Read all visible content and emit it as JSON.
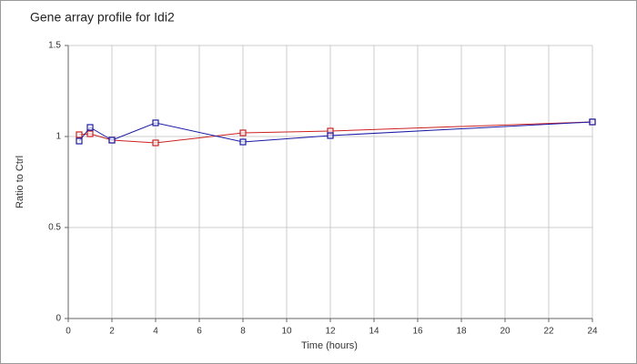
{
  "chart_data": {
    "type": "line",
    "title": "Gene array profile for Idi2",
    "xlabel": "Time (hours)",
    "ylabel": "Ratio to Ctrl",
    "x": [
      0.5,
      1,
      2,
      4,
      8,
      12,
      24
    ],
    "series": [
      {
        "color": "#cc2222",
        "values": [
          1.01,
          1.015,
          0.98,
          0.965,
          1.02,
          1.03,
          1.08
        ]
      },
      {
        "color": "#1a1aa8",
        "values": [
          0.975,
          1.05,
          0.98,
          1.075,
          0.97,
          1.005,
          1.08
        ]
      }
    ],
    "xlim": [
      0,
      24
    ],
    "xticks": [
      0,
      2,
      4,
      6,
      8,
      10,
      12,
      14,
      16,
      18,
      20,
      22,
      24
    ],
    "ylim": [
      0,
      1.5
    ],
    "yticks": [
      0,
      0.5,
      1,
      1.5
    ],
    "grid": true
  }
}
